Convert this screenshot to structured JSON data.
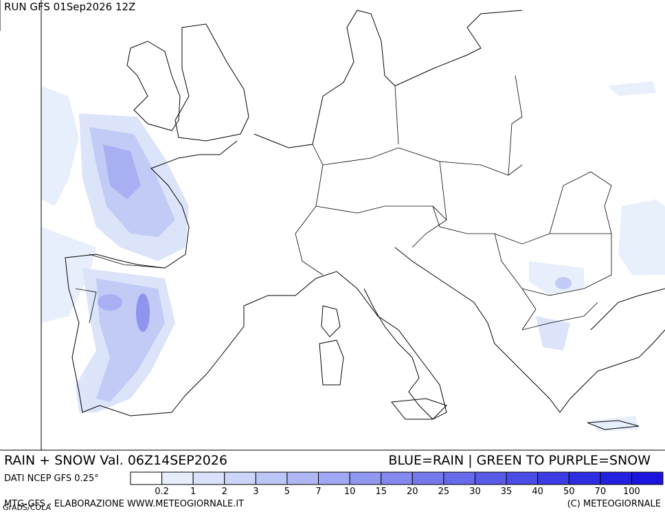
{
  "header": {
    "run": "RUN GFS 01Sep2026 12Z"
  },
  "footer": {
    "title": "RAIN + SNOW Val. 06Z14SEP2026",
    "legend_note": "BLUE=RAIN | GREEN TO PURPLE=SNOW",
    "source": "DATI NCEP GFS 0.25°",
    "credit": "MTG-GFS - ELABORAZIONE WWW.METEOGIORNALE.IT",
    "grads": "GrADS/COLA",
    "copyright": "(C) METEOGIORNALE"
  },
  "legend": {
    "labels": [
      "0.2",
      "1",
      "2",
      "3",
      "5",
      "7",
      "10",
      "15",
      "20",
      "25",
      "30",
      "35",
      "40",
      "50",
      "70",
      "100"
    ],
    "colors": [
      "#ffffff",
      "#e6eefc",
      "#d9e2fa",
      "#cbd5f8",
      "#bcc6f6",
      "#aeb7f4",
      "#9fa8f2",
      "#9198f0",
      "#8389ee",
      "#7579ec",
      "#676aea",
      "#595ae8",
      "#4b4be6",
      "#3d3ce4",
      "#2f2de2",
      "#2420e0",
      "#1a14de"
    ]
  }
}
